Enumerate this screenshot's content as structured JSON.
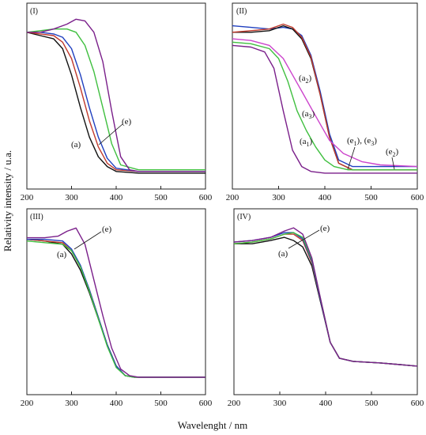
{
  "figure": {
    "xlabel": "Wavelenght / nm",
    "ylabel": "Relativity intensity / u.a."
  },
  "colors": {
    "black": "#111111",
    "red": "#c0392b",
    "blue": "#1f3fbf",
    "green": "#3fbf3f",
    "purple": "#7a1f8a",
    "magenta": "#cc44cc"
  },
  "chart_data": [
    {
      "type": "line",
      "panel": "(I)",
      "xlim": [
        200,
        600
      ],
      "x_ticks": [
        200,
        300,
        400,
        500,
        600
      ],
      "ylim": [
        0,
        1
      ],
      "annotations": [
        "(e)",
        "(a)"
      ],
      "series": [
        {
          "color": "#111111",
          "x": [
            200,
            230,
            260,
            280,
            300,
            320,
            340,
            360,
            380,
            400,
            450,
            600
          ],
          "y": [
            0.88,
            0.86,
            0.84,
            0.78,
            0.62,
            0.42,
            0.24,
            0.12,
            0.06,
            0.03,
            0.02,
            0.02
          ]
        },
        {
          "color": "#c0392b",
          "x": [
            200,
            230,
            260,
            280,
            300,
            320,
            340,
            360,
            380,
            400,
            450,
            600
          ],
          "y": [
            0.88,
            0.87,
            0.86,
            0.82,
            0.72,
            0.54,
            0.34,
            0.18,
            0.08,
            0.04,
            0.03,
            0.03
          ]
        },
        {
          "color": "#1f3fbf",
          "x": [
            200,
            230,
            260,
            280,
            300,
            320,
            340,
            360,
            380,
            400,
            450,
            600
          ],
          "y": [
            0.88,
            0.88,
            0.87,
            0.85,
            0.78,
            0.62,
            0.42,
            0.24,
            0.11,
            0.05,
            0.03,
            0.03
          ]
        },
        {
          "color": "#3fbf3f",
          "x": [
            200,
            230,
            260,
            290,
            310,
            330,
            350,
            370,
            390,
            410,
            450,
            600
          ],
          "y": [
            0.88,
            0.89,
            0.9,
            0.9,
            0.88,
            0.8,
            0.64,
            0.42,
            0.2,
            0.07,
            0.04,
            0.04
          ]
        },
        {
          "color": "#7a1f8a",
          "x": [
            200,
            230,
            260,
            290,
            310,
            330,
            350,
            370,
            390,
            410,
            430,
            450,
            600
          ],
          "y": [
            0.88,
            0.88,
            0.9,
            0.93,
            0.96,
            0.95,
            0.88,
            0.7,
            0.4,
            0.12,
            0.04,
            0.03,
            0.03
          ]
        }
      ]
    },
    {
      "type": "line",
      "panel": "(II)",
      "xlim": [
        200,
        600
      ],
      "x_ticks": [
        200,
        300,
        400,
        500,
        600
      ],
      "ylim": [
        0,
        1
      ],
      "annotations": [
        "(a2)",
        "(a3)",
        "(a1)",
        "(e1), (e3)",
        "(e2)"
      ],
      "series": [
        {
          "color": "#1f3fbf",
          "x": [
            200,
            240,
            280,
            310,
            330,
            350,
            370,
            390,
            410,
            430,
            460,
            600
          ],
          "y": [
            0.92,
            0.91,
            0.9,
            0.91,
            0.9,
            0.86,
            0.74,
            0.52,
            0.26,
            0.1,
            0.06,
            0.06
          ]
        },
        {
          "color": "#111111",
          "x": [
            200,
            240,
            280,
            310,
            330,
            350,
            370,
            390,
            410,
            430,
            460,
            600
          ],
          "y": [
            0.88,
            0.88,
            0.89,
            0.92,
            0.9,
            0.84,
            0.72,
            0.5,
            0.24,
            0.08,
            0.04,
            0.04
          ]
        },
        {
          "color": "#c0392b",
          "x": [
            200,
            240,
            280,
            310,
            330,
            350,
            370,
            390,
            410,
            430,
            460,
            600
          ],
          "y": [
            0.88,
            0.89,
            0.9,
            0.93,
            0.91,
            0.85,
            0.73,
            0.5,
            0.24,
            0.08,
            0.04,
            0.04
          ]
        },
        {
          "color": "#cc44cc",
          "x": [
            200,
            240,
            280,
            310,
            330,
            350,
            370,
            390,
            410,
            440,
            480,
            520,
            600
          ],
          "y": [
            0.84,
            0.83,
            0.8,
            0.72,
            0.62,
            0.52,
            0.42,
            0.32,
            0.22,
            0.14,
            0.09,
            0.07,
            0.06
          ]
        },
        {
          "color": "#3fbf3f",
          "x": [
            200,
            240,
            280,
            300,
            320,
            340,
            360,
            380,
            400,
            420,
            450,
            600
          ],
          "y": [
            0.82,
            0.81,
            0.78,
            0.72,
            0.58,
            0.4,
            0.28,
            0.18,
            0.1,
            0.06,
            0.04,
            0.04
          ]
        },
        {
          "color": "#7a1f8a",
          "x": [
            200,
            240,
            270,
            290,
            310,
            330,
            350,
            370,
            400,
            430,
            600
          ],
          "y": [
            0.8,
            0.79,
            0.76,
            0.66,
            0.4,
            0.16,
            0.06,
            0.03,
            0.02,
            0.02,
            0.02
          ]
        }
      ]
    },
    {
      "type": "line",
      "panel": "(III)",
      "xlim": [
        200,
        600
      ],
      "x_ticks": [
        200,
        300,
        400,
        500,
        600
      ],
      "ylim": [
        0,
        1
      ],
      "annotations": [
        "(e)",
        "(a)"
      ],
      "series": [
        {
          "color": "#111111",
          "x": [
            200,
            240,
            280,
            300,
            320,
            340,
            360,
            380,
            400,
            420,
            440,
            600
          ],
          "y": [
            0.87,
            0.86,
            0.84,
            0.78,
            0.68,
            0.54,
            0.38,
            0.22,
            0.09,
            0.03,
            0.02,
            0.02
          ]
        },
        {
          "color": "#c0392b",
          "x": [
            200,
            240,
            280,
            300,
            320,
            340,
            360,
            380,
            400,
            420,
            440,
            600
          ],
          "y": [
            0.87,
            0.86,
            0.85,
            0.8,
            0.7,
            0.56,
            0.39,
            0.22,
            0.09,
            0.03,
            0.02,
            0.02
          ]
        },
        {
          "color": "#1f3fbf",
          "x": [
            200,
            240,
            280,
            300,
            320,
            340,
            360,
            380,
            400,
            420,
            440,
            600
          ],
          "y": [
            0.87,
            0.87,
            0.86,
            0.81,
            0.71,
            0.56,
            0.39,
            0.22,
            0.09,
            0.03,
            0.02,
            0.02
          ]
        },
        {
          "color": "#3fbf3f",
          "x": [
            200,
            240,
            280,
            300,
            320,
            340,
            360,
            380,
            400,
            420,
            440,
            600
          ],
          "y": [
            0.86,
            0.85,
            0.84,
            0.8,
            0.7,
            0.55,
            0.38,
            0.21,
            0.08,
            0.03,
            0.02,
            0.02
          ]
        },
        {
          "color": "#7a1f8a",
          "x": [
            200,
            240,
            270,
            290,
            310,
            330,
            350,
            370,
            390,
            410,
            430,
            450,
            600
          ],
          "y": [
            0.88,
            0.88,
            0.89,
            0.92,
            0.94,
            0.84,
            0.62,
            0.4,
            0.2,
            0.07,
            0.03,
            0.02,
            0.02
          ]
        }
      ]
    },
    {
      "type": "line",
      "panel": "(IV)",
      "xlim": [
        200,
        600
      ],
      "x_ticks": [
        200,
        300,
        400,
        500,
        600
      ],
      "ylim": [
        0,
        1
      ],
      "annotations": [
        "(e)",
        "(a)"
      ],
      "series": [
        {
          "color": "#111111",
          "x": [
            200,
            240,
            280,
            310,
            330,
            350,
            370,
            390,
            410,
            430,
            460,
            520,
            600
          ],
          "y": [
            0.84,
            0.84,
            0.86,
            0.88,
            0.86,
            0.82,
            0.7,
            0.46,
            0.22,
            0.12,
            0.1,
            0.09,
            0.07
          ]
        },
        {
          "color": "#c0392b",
          "x": [
            200,
            240,
            280,
            310,
            330,
            350,
            370,
            390,
            410,
            430,
            460,
            520,
            600
          ],
          "y": [
            0.84,
            0.85,
            0.87,
            0.9,
            0.9,
            0.86,
            0.72,
            0.47,
            0.22,
            0.12,
            0.1,
            0.09,
            0.07
          ]
        },
        {
          "color": "#1f3fbf",
          "x": [
            200,
            240,
            280,
            310,
            330,
            350,
            370,
            390,
            410,
            430,
            460,
            520,
            600
          ],
          "y": [
            0.85,
            0.86,
            0.88,
            0.91,
            0.91,
            0.87,
            0.73,
            0.47,
            0.22,
            0.12,
            0.1,
            0.09,
            0.07
          ]
        },
        {
          "color": "#3fbf3f",
          "x": [
            200,
            240,
            280,
            310,
            330,
            350,
            370,
            390,
            410,
            430,
            460,
            520,
            600
          ],
          "y": [
            0.84,
            0.85,
            0.87,
            0.9,
            0.91,
            0.88,
            0.74,
            0.48,
            0.22,
            0.12,
            0.1,
            0.09,
            0.07
          ]
        },
        {
          "color": "#7a1f8a",
          "x": [
            200,
            240,
            280,
            310,
            330,
            350,
            370,
            390,
            410,
            430,
            460,
            520,
            600
          ],
          "y": [
            0.85,
            0.86,
            0.88,
            0.92,
            0.94,
            0.9,
            0.75,
            0.48,
            0.22,
            0.12,
            0.1,
            0.09,
            0.07
          ]
        }
      ]
    }
  ]
}
